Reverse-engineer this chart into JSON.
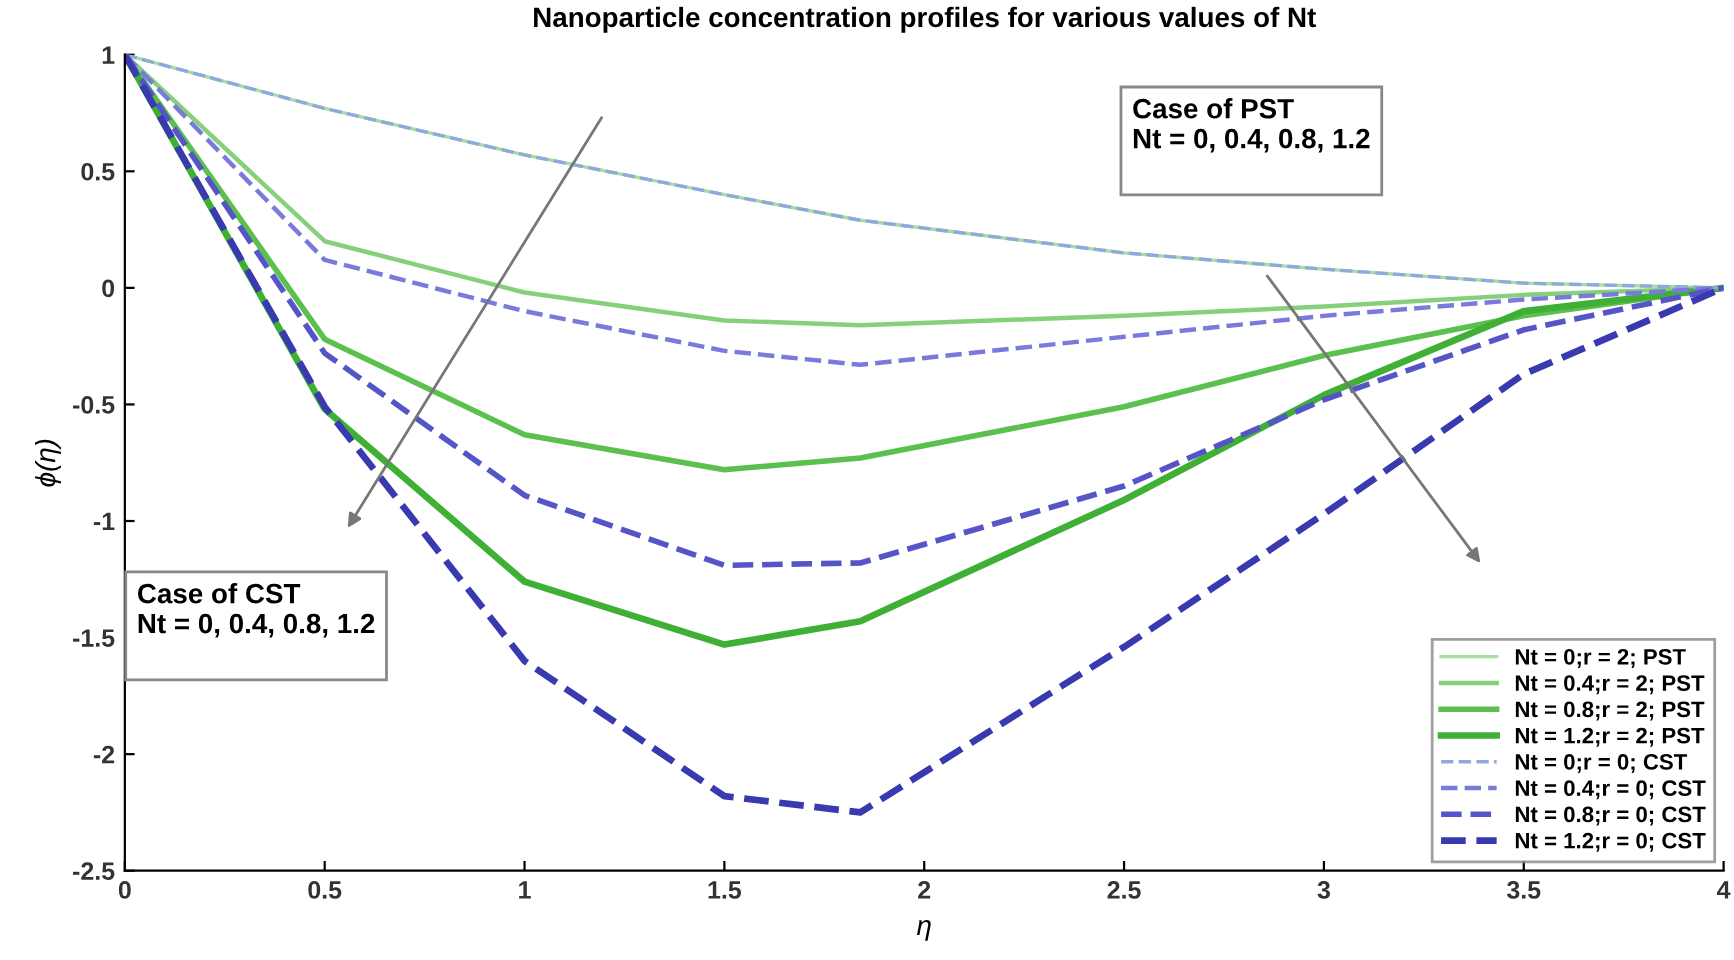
{
  "chart_data": {
    "type": "line",
    "title": "Nanoparticle concentration profiles for various values of Nt",
    "xlabel": "η",
    "ylabel": "ϕ(η)",
    "x": [
      0,
      0.5,
      1,
      1.5,
      1.84,
      2.5,
      3,
      3.5,
      4
    ],
    "series": [
      {
        "name": "Nt = 0;r = 2; PST",
        "color": "#a8dca0",
        "line_style": "solid",
        "values": [
          1,
          0.77,
          0.57,
          0.4,
          0.29,
          0.15,
          0.08,
          0.02,
          0
        ]
      },
      {
        "name": "Nt = 0.4;r = 2; PST",
        "color": "#86d07c",
        "line_style": "solid",
        "values": [
          1,
          0.2,
          -0.02,
          -0.14,
          -0.16,
          -0.12,
          -0.08,
          -0.03,
          0
        ]
      },
      {
        "name": "Nt = 0.8;r = 2; PST",
        "color": "#5cc04f",
        "line_style": "solid",
        "values": [
          1,
          -0.22,
          -0.63,
          -0.78,
          -0.73,
          -0.51,
          -0.29,
          -0.12,
          0
        ]
      },
      {
        "name": "Nt = 1.2;r = 2; PST",
        "color": "#3fb035",
        "line_style": "solid",
        "values": [
          1,
          -0.52,
          -1.26,
          -1.53,
          -1.43,
          -0.91,
          -0.46,
          -0.1,
          0
        ]
      },
      {
        "name": "Nt = 0;r = 0; CST",
        "color": "#8fa8e0",
        "line_style": "dashed",
        "values": [
          1,
          0.77,
          0.57,
          0.4,
          0.29,
          0.15,
          0.08,
          0.02,
          0
        ]
      },
      {
        "name": "Nt = 0.4;r = 0; CST",
        "color": "#7a7adc",
        "line_style": "dashed",
        "values": [
          1,
          0.12,
          -0.1,
          -0.27,
          -0.33,
          -0.21,
          -0.12,
          -0.05,
          0
        ]
      },
      {
        "name": "Nt = 0.8;r = 0; CST",
        "color": "#5555c8",
        "line_style": "dashed",
        "values": [
          1,
          -0.28,
          -0.89,
          -1.19,
          -1.18,
          -0.85,
          -0.48,
          -0.18,
          0
        ]
      },
      {
        "name": "Nt = 1.2;r = 0; CST",
        "color": "#3a3ab0",
        "line_style": "dashed",
        "values": [
          1,
          -0.51,
          -1.6,
          -2.18,
          -2.25,
          -1.54,
          -0.97,
          -0.37,
          0
        ]
      }
    ],
    "xlim": [
      0,
      4
    ],
    "ylim": [
      -2.5,
      1
    ],
    "xticks": [
      0,
      0.5,
      1,
      1.5,
      2,
      2.5,
      3,
      3.5,
      4
    ],
    "yticks": [
      -2.5,
      -2,
      -1.5,
      -1,
      -0.5,
      0,
      0.5,
      1
    ],
    "annotations": [
      "Case of PST\nNt = 0, 0.4, 0.8, 1.2",
      "Case of CST\nNt = 0, 0.4, 0.8, 1.2"
    ],
    "grid": false,
    "legend": "bottom right"
  }
}
